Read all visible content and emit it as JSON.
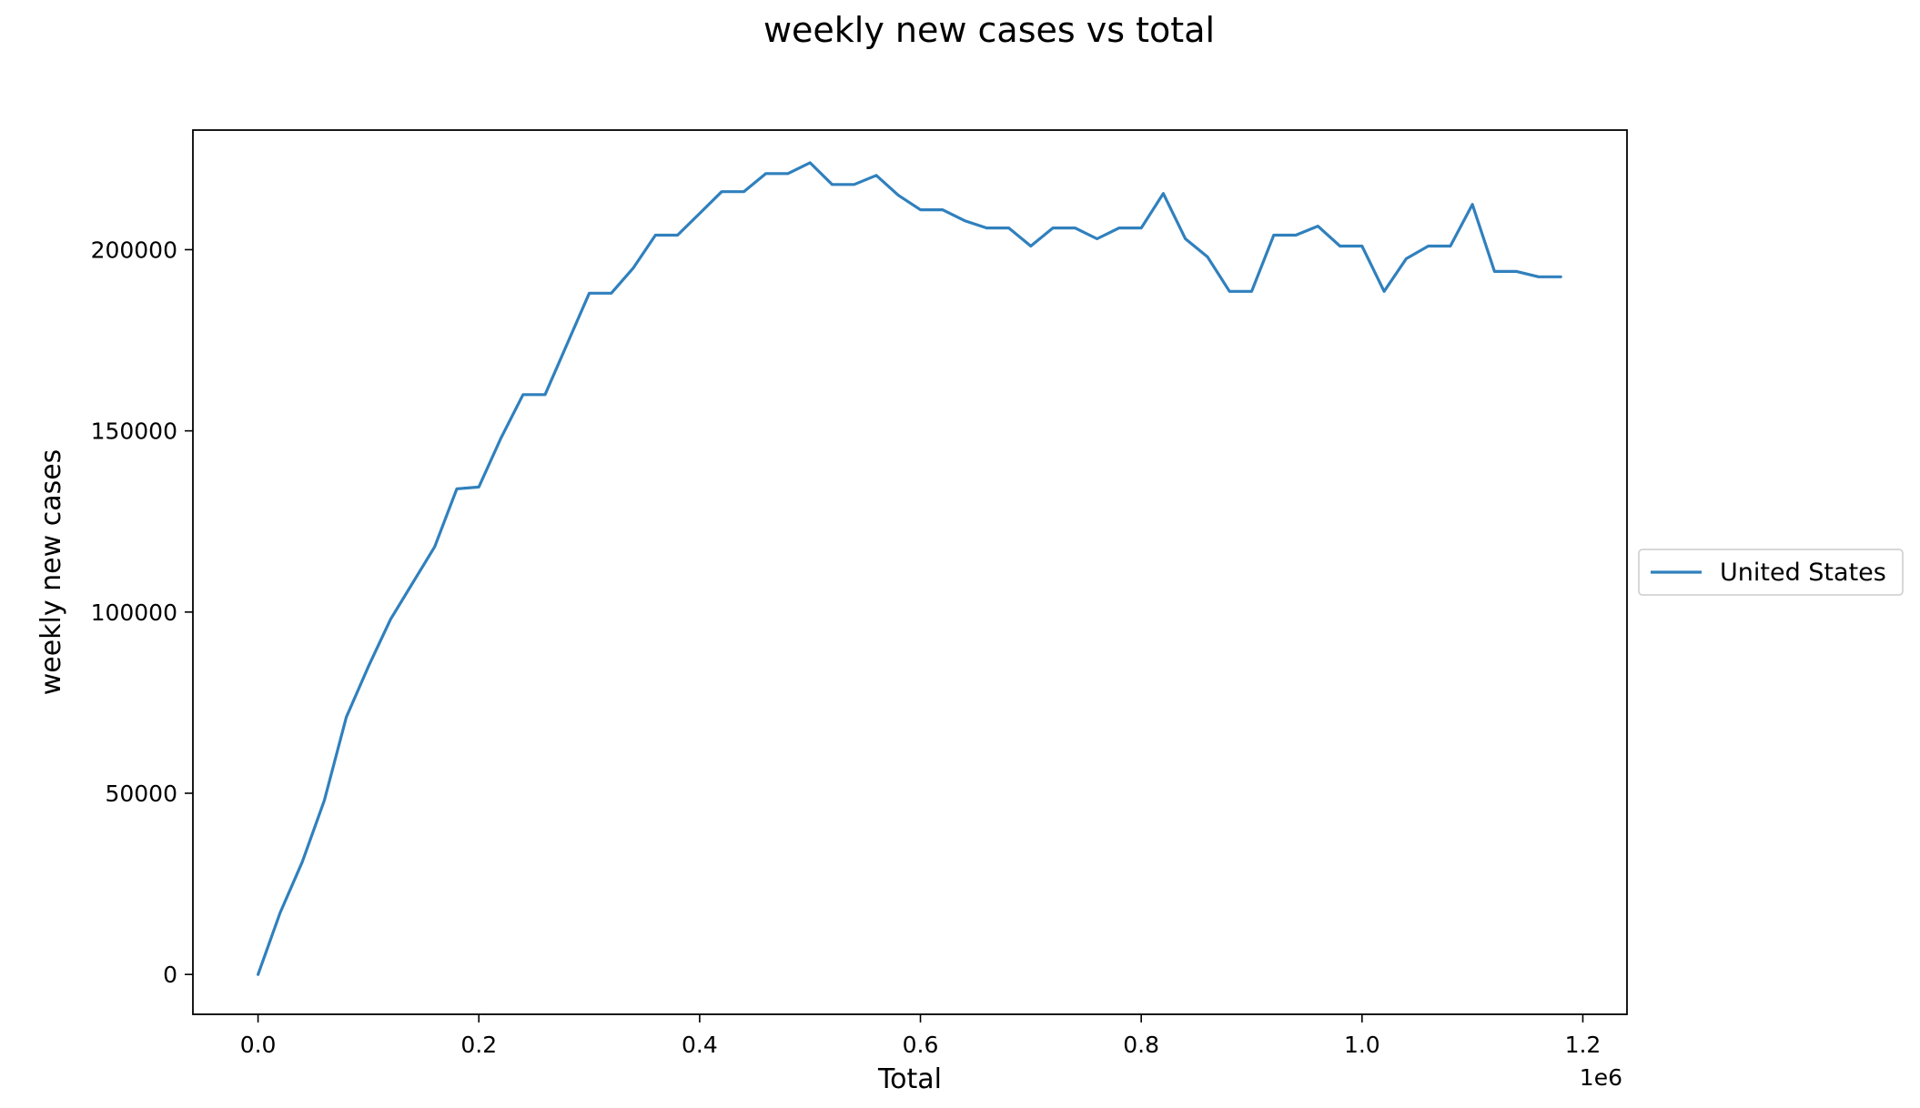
{
  "chart_data": {
    "type": "line",
    "title": "weekly new cases vs total",
    "xlabel": "Total",
    "ylabel": "weekly new cases",
    "x_offset_text": "1e6",
    "xlim": [
      -0.059,
      1.24
    ],
    "ylim": [
      -11000,
      233000
    ],
    "x_ticks": [
      0.0,
      0.2,
      0.4,
      0.6,
      0.8,
      1.0,
      1.2
    ],
    "x_tick_labels": [
      "0.0",
      "0.2",
      "0.4",
      "0.6",
      "0.8",
      "1.0",
      "1.2"
    ],
    "y_ticks": [
      0,
      50000,
      100000,
      150000,
      200000
    ],
    "y_tick_labels": [
      "0",
      "50000",
      "100000",
      "150000",
      "200000"
    ],
    "grid": false,
    "legend_position": "center-right-outside",
    "colors": {
      "series": "#3080bd"
    },
    "series": [
      {
        "name": "United States",
        "x": [
          0.0,
          0.02,
          0.04,
          0.06,
          0.08,
          0.1,
          0.12,
          0.14,
          0.16,
          0.18,
          0.2,
          0.22,
          0.24,
          0.26,
          0.28,
          0.3,
          0.32,
          0.34,
          0.36,
          0.38,
          0.4,
          0.42,
          0.44,
          0.46,
          0.48,
          0.5,
          0.52,
          0.54,
          0.56,
          0.58,
          0.6,
          0.62,
          0.64,
          0.66,
          0.68,
          0.7,
          0.72,
          0.74,
          0.76,
          0.78,
          0.8,
          0.82,
          0.84,
          0.86,
          0.88,
          0.9,
          0.92,
          0.94,
          0.96,
          0.98,
          1.0,
          1.02,
          1.04,
          1.06,
          1.08,
          1.1,
          1.12,
          1.14,
          1.16,
          1.18
        ],
        "values": [
          0,
          17000,
          31000,
          48000,
          71000,
          85000,
          98000,
          108000,
          118000,
          134000,
          134500,
          148000,
          160000,
          160000,
          174000,
          188000,
          188000,
          195000,
          204000,
          204000,
          210000,
          216000,
          216000,
          221000,
          221000,
          224000,
          218000,
          218000,
          220500,
          215000,
          211000,
          211000,
          208000,
          206000,
          206000,
          201000,
          206000,
          206000,
          203000,
          206000,
          206000,
          215500,
          203000,
          198000,
          188500,
          188500,
          204000,
          204000,
          206500,
          201000,
          201000,
          188500,
          197500,
          201000,
          201000,
          212500,
          194000,
          194000,
          192500,
          192500
        ]
      }
    ]
  }
}
